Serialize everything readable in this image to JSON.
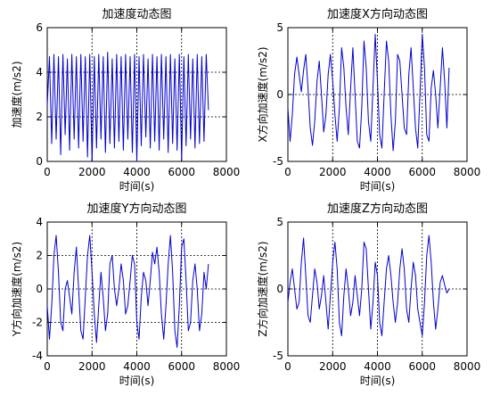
{
  "figure": {
    "background": "#ffffff",
    "line_color": "#0000cc",
    "grid_color": "#000000",
    "grid_style": "dotted"
  },
  "chart_data": [
    {
      "type": "line",
      "title": "加速度动态图",
      "xlabel": "时间(s)",
      "ylabel": "加速度(m/s2)",
      "xlim": [
        0,
        8000
      ],
      "ylim": [
        0,
        6
      ],
      "xticks": [
        0,
        2000,
        4000,
        6000,
        8000
      ],
      "yticks": [
        0,
        2,
        4,
        6
      ],
      "grid": true,
      "series": [
        {
          "x": [
            0,
            100,
            200,
            300,
            400,
            500,
            600,
            700,
            800,
            900,
            1000,
            1100,
            1200,
            1300,
            1400,
            1500,
            1600,
            1700,
            1800,
            1900,
            2000,
            2100,
            2200,
            2300,
            2400,
            2500,
            2600,
            2700,
            2800,
            2900,
            3000,
            3100,
            3200,
            3300,
            3400,
            3500,
            3600,
            3700,
            3800,
            3900,
            4000,
            4100,
            4200,
            4300,
            4400,
            4500,
            4600,
            4700,
            4800,
            4900,
            5000,
            5100,
            5200,
            5300,
            5400,
            5500,
            5600,
            5700,
            5800,
            5900,
            6000,
            6100,
            6200,
            6300,
            6400,
            6500,
            6600,
            6700,
            6800,
            6900,
            7000,
            7100,
            7200
          ],
          "y": [
            2.5,
            4.7,
            0.8,
            4.8,
            1.0,
            4.7,
            0.3,
            4.8,
            1.2,
            4.6,
            0.5,
            4.8,
            1.0,
            4.7,
            0.6,
            4.8,
            0.9,
            4.7,
            0.2,
            4.8,
            0.0,
            4.7,
            0.6,
            4.8,
            1.0,
            4.7,
            0.4,
            4.9,
            0.8,
            4.6,
            0.6,
            4.8,
            0.9,
            4.7,
            0.5,
            4.8,
            1.0,
            4.7,
            0.4,
            4.8,
            0.0,
            4.7,
            0.7,
            4.8,
            1.1,
            4.6,
            0.6,
            4.8,
            0.9,
            4.7,
            0.5,
            4.8,
            1.0,
            4.7,
            0.4,
            4.8,
            0.8,
            4.6,
            0.5,
            4.8,
            0.1,
            4.7,
            0.7,
            4.8,
            1.0,
            4.6,
            0.6,
            4.8,
            0.8,
            4.7,
            0.9,
            4.8,
            2.3
          ]
        }
      ]
    },
    {
      "type": "line",
      "title": "加速度X方向动态图",
      "xlabel": "时间(s)",
      "ylabel": "X方向加速度(m/s2)",
      "xlim": [
        0,
        8000
      ],
      "ylim": [
        -5,
        5
      ],
      "xticks": [
        0,
        2000,
        4000,
        6000,
        8000
      ],
      "yticks": [
        -5,
        0,
        5
      ],
      "grid": true,
      "series": [
        {
          "x": [
            0,
            100,
            200,
            300,
            400,
            500,
            600,
            700,
            800,
            900,
            1000,
            1100,
            1200,
            1300,
            1400,
            1500,
            1600,
            1700,
            1800,
            1900,
            2000,
            2100,
            2200,
            2300,
            2400,
            2500,
            2600,
            2700,
            2800,
            2900,
            3000,
            3100,
            3200,
            3300,
            3400,
            3500,
            3600,
            3700,
            3800,
            3900,
            4000,
            4100,
            4200,
            4300,
            4400,
            4500,
            4600,
            4700,
            4800,
            4900,
            5000,
            5100,
            5200,
            5300,
            5400,
            5500,
            5600,
            5700,
            5800,
            5900,
            6000,
            6100,
            6200,
            6300,
            6400,
            6500,
            6600,
            6700,
            6800,
            6900,
            7000,
            7100,
            7200
          ],
          "y": [
            -1.0,
            -3.5,
            -1.5,
            1.5,
            2.8,
            1.5,
            0.2,
            1.8,
            3.0,
            0.5,
            -2.5,
            -3.8,
            -2.0,
            1.0,
            2.5,
            0.0,
            -2.8,
            -1.5,
            1.5,
            3.0,
            1.0,
            -1.5,
            -3.5,
            -1.0,
            3.5,
            2.0,
            -1.0,
            -3.0,
            0.5,
            3.5,
            0.0,
            -3.5,
            -4.0,
            -1.0,
            4.0,
            2.0,
            -2.0,
            -3.5,
            0.5,
            4.5,
            1.0,
            -3.0,
            -4.0,
            0.0,
            4.0,
            2.5,
            -1.5,
            -4.2,
            -2.0,
            3.0,
            2.5,
            0.0,
            -2.5,
            -3.0,
            1.5,
            3.5,
            0.5,
            -2.5,
            -4.0,
            0.0,
            4.5,
            2.0,
            -3.0,
            -3.5,
            0.5,
            1.8,
            0.0,
            -2.5,
            0.5,
            3.5,
            1.0,
            -2.5,
            2.0
          ]
        }
      ]
    },
    {
      "type": "line",
      "title": "加速度Y方向动态图",
      "xlabel": "时间(s)",
      "ylabel": "Y方向加速度(m/s2)",
      "xlim": [
        0,
        8000
      ],
      "ylim": [
        -4,
        4
      ],
      "xticks": [
        0,
        2000,
        4000,
        6000,
        8000
      ],
      "yticks": [
        -4,
        -2,
        0,
        2,
        4
      ],
      "grid": true,
      "series": [
        {
          "x": [
            0,
            100,
            200,
            300,
            400,
            500,
            600,
            700,
            800,
            900,
            1000,
            1100,
            1200,
            1300,
            1400,
            1500,
            1600,
            1700,
            1800,
            1900,
            2000,
            2100,
            2200,
            2300,
            2400,
            2500,
            2600,
            2700,
            2800,
            2900,
            3000,
            3100,
            3200,
            3300,
            3400,
            3500,
            3600,
            3700,
            3800,
            3900,
            4000,
            4100,
            4200,
            4300,
            4400,
            4500,
            4600,
            4700,
            4800,
            4900,
            5000,
            5100,
            5200,
            5300,
            5400,
            5500,
            5600,
            5700,
            5800,
            5900,
            6000,
            6100,
            6200,
            6300,
            6400,
            6500,
            6600,
            6700,
            6800,
            6900,
            7000,
            7100,
            7200
          ],
          "y": [
            -1.0,
            -3.0,
            -1.0,
            2.0,
            3.2,
            1.0,
            -2.0,
            -2.5,
            0.0,
            0.5,
            -0.5,
            -1.5,
            1.0,
            2.5,
            0.0,
            -2.5,
            -3.0,
            -0.5,
            2.0,
            3.2,
            1.0,
            -1.5,
            -3.2,
            -1.0,
            1.0,
            -0.5,
            -2.5,
            -1.5,
            1.5,
            2.0,
            0.0,
            -1.0,
            0.0,
            1.5,
            0.5,
            -1.5,
            -1.0,
            0.5,
            2.0,
            1.5,
            -2.0,
            -3.0,
            -0.5,
            1.0,
            0.5,
            -1.0,
            0.5,
            2.2,
            1.5,
            2.5,
            1.0,
            -1.5,
            -3.0,
            -1.0,
            1.5,
            3.2,
            1.0,
            -2.5,
            -3.5,
            -1.0,
            2.5,
            3.0,
            0.5,
            -2.5,
            -2.0,
            0.5,
            1.5,
            0.0,
            -2.5,
            -1.5,
            1.0,
            0.0,
            1.5
          ]
        }
      ]
    },
    {
      "type": "line",
      "title": "加速度Z方向动态图",
      "xlabel": "时间(s)",
      "ylabel": "Z方向加速度(m/s2)",
      "xlim": [
        0,
        8000
      ],
      "ylim": [
        -5,
        5
      ],
      "xticks": [
        0,
        2000,
        4000,
        6000,
        8000
      ],
      "yticks": [
        -5,
        0,
        5
      ],
      "grid": true,
      "series": [
        {
          "x": [
            0,
            100,
            200,
            300,
            400,
            500,
            600,
            700,
            800,
            900,
            1000,
            1100,
            1200,
            1300,
            1400,
            1500,
            1600,
            1700,
            1800,
            1900,
            2000,
            2100,
            2200,
            2300,
            2400,
            2500,
            2600,
            2700,
            2800,
            2900,
            3000,
            3100,
            3200,
            3300,
            3400,
            3500,
            3600,
            3700,
            3800,
            3900,
            4000,
            4100,
            4200,
            4300,
            4400,
            4500,
            4600,
            4700,
            4800,
            4900,
            5000,
            5100,
            5200,
            5300,
            5400,
            5500,
            5600,
            5700,
            5800,
            5900,
            6000,
            6100,
            6200,
            6300,
            6400,
            6500,
            6600,
            6700,
            6800,
            6900,
            7000,
            7100,
            7200
          ],
          "y": [
            -1.0,
            0.5,
            1.5,
            0.0,
            -1.5,
            -1.0,
            2.0,
            3.8,
            1.0,
            -2.0,
            -2.5,
            -0.5,
            1.5,
            0.5,
            -1.5,
            -0.5,
            1.0,
            -1.0,
            -3.0,
            -0.5,
            2.0,
            3.5,
            1.5,
            -2.5,
            -3.5,
            -0.5,
            1.5,
            0.0,
            -2.0,
            -1.0,
            1.0,
            -0.5,
            -2.0,
            0.0,
            3.5,
            3.0,
            0.0,
            -3.0,
            -1.0,
            2.0,
            1.0,
            -2.5,
            -3.5,
            -1.0,
            1.5,
            2.5,
            1.0,
            -1.0,
            -2.5,
            -1.0,
            1.5,
            3.0,
            1.5,
            -1.5,
            -2.5,
            0.0,
            2.0,
            1.0,
            -1.5,
            -2.5,
            -3.5,
            -1.0,
            2.5,
            4.0,
            2.0,
            -1.0,
            -3.0,
            -1.5,
            0.5,
            1.0,
            0.3,
            -0.3,
            0.0
          ]
        }
      ]
    }
  ]
}
